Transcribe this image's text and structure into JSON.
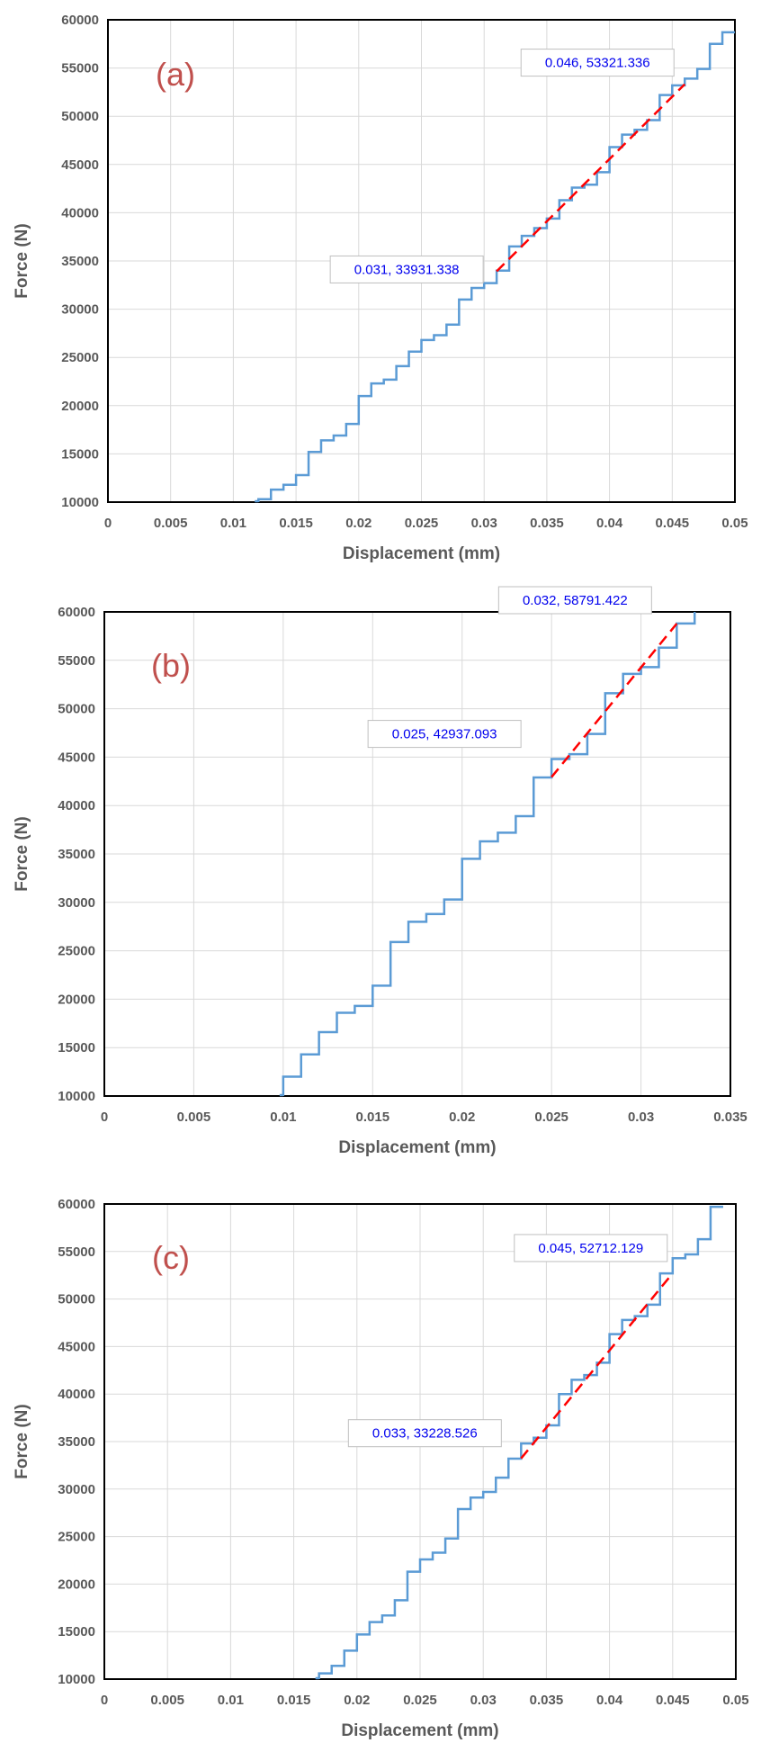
{
  "colors": {
    "curve": "#5b9bd5",
    "fit": "#ff0000",
    "annotation_text": "#0000ee",
    "panel_label": "#c0504d",
    "axis_text": "#595959",
    "grid": "#d9d9d9"
  },
  "chart_data": [
    {
      "type": "line",
      "panel_label": "(a)",
      "xlabel": "Displacement (mm)",
      "ylabel": "Force (N)",
      "xlim": [
        0,
        0.05
      ],
      "ylim": [
        10000,
        60000
      ],
      "xticks": [
        "0",
        "0.005",
        "0.01",
        "0.015",
        "0.02",
        "0.025",
        "0.03",
        "0.035",
        "0.04",
        "0.045",
        "0.05"
      ],
      "yticks": [
        "10000",
        "15000",
        "20000",
        "25000",
        "30000",
        "35000",
        "40000",
        "45000",
        "50000",
        "55000",
        "60000"
      ],
      "grid": true,
      "series": [
        {
          "style": "step",
          "x": [
            0.012,
            0.013,
            0.014,
            0.015,
            0.016,
            0.017,
            0.018,
            0.019,
            0.02,
            0.021,
            0.022,
            0.023,
            0.024,
            0.025,
            0.026,
            0.027,
            0.028,
            0.029,
            0.03,
            0.031,
            0.032,
            0.033,
            0.034,
            0.035,
            0.036,
            0.037,
            0.038,
            0.039,
            0.04,
            0.041,
            0.042,
            0.043,
            0.044,
            0.045,
            0.046,
            0.047,
            0.048,
            0.049,
            0.05
          ],
          "y": [
            10300,
            11300,
            11800,
            12800,
            15200,
            16400,
            16900,
            18100,
            21000,
            22300,
            22700,
            24100,
            25600,
            26800,
            27300,
            28400,
            31000,
            32200,
            32700,
            34000,
            36500,
            37600,
            38400,
            39400,
            41300,
            42600,
            42900,
            44200,
            46800,
            48100,
            48600,
            49600,
            52200,
            53200,
            53900,
            54900,
            57500,
            58700,
            58700
          ]
        },
        {
          "style": "dashed-fit",
          "x": [
            0.031,
            0.046
          ],
          "y": [
            33931.338,
            53321.336
          ]
        }
      ],
      "annotations": [
        {
          "text": "0.031, 33931.338",
          "x": 0.031,
          "y": 33931.338
        },
        {
          "text": "0.046, 53321.336",
          "x": 0.046,
          "y": 53321.336
        }
      ]
    },
    {
      "type": "line",
      "panel_label": "(b)",
      "xlabel": "Displacement (mm)",
      "ylabel": "Force (N)",
      "xlim": [
        0,
        0.035
      ],
      "ylim": [
        10000,
        60000
      ],
      "xticks": [
        "0",
        "0.005",
        "0.01",
        "0.015",
        "0.02",
        "0.025",
        "0.03",
        "0.035"
      ],
      "yticks": [
        "10000",
        "15000",
        "20000",
        "25000",
        "30000",
        "35000",
        "40000",
        "45000",
        "50000",
        "55000",
        "60000"
      ],
      "grid": true,
      "series": [
        {
          "style": "step",
          "x": [
            0.01,
            0.011,
            0.012,
            0.013,
            0.014,
            0.015,
            0.016,
            0.017,
            0.018,
            0.019,
            0.02,
            0.021,
            0.022,
            0.023,
            0.024,
            0.025,
            0.026,
            0.027,
            0.028,
            0.029,
            0.03,
            0.031,
            0.032,
            0.033
          ],
          "y": [
            12000,
            14300,
            16600,
            18600,
            19300,
            21400,
            25900,
            28000,
            28800,
            30300,
            34500,
            36300,
            37200,
            38900,
            42900,
            44800,
            45300,
            47400,
            51600,
            53600,
            54300,
            56300,
            58800,
            60000
          ]
        },
        {
          "style": "dashed-fit",
          "x": [
            0.025,
            0.032
          ],
          "y": [
            42937.093,
            58791.422
          ]
        }
      ],
      "annotations": [
        {
          "text": "0.025, 42937.093",
          "x": 0.025,
          "y": 42937.093
        },
        {
          "text": "0.032, 58791.422",
          "x": 0.032,
          "y": 58791.422
        }
      ]
    },
    {
      "type": "line",
      "panel_label": "(c)",
      "xlabel": "Displacement (mm)",
      "ylabel": "Force (N)",
      "xlim": [
        0,
        0.05
      ],
      "ylim": [
        10000,
        60000
      ],
      "xticks": [
        "0",
        "0.005",
        "0.01",
        "0.015",
        "0.02",
        "0.025",
        "0.03",
        "0.035",
        "0.04",
        "0.045",
        "0.05"
      ],
      "yticks": [
        "10000",
        "15000",
        "20000",
        "25000",
        "30000",
        "35000",
        "40000",
        "45000",
        "50000",
        "55000",
        "60000"
      ],
      "grid": true,
      "series": [
        {
          "style": "step",
          "x": [
            0.017,
            0.018,
            0.019,
            0.02,
            0.021,
            0.022,
            0.023,
            0.024,
            0.025,
            0.026,
            0.027,
            0.028,
            0.029,
            0.03,
            0.031,
            0.032,
            0.033,
            0.034,
            0.035,
            0.036,
            0.037,
            0.038,
            0.039,
            0.04,
            0.041,
            0.042,
            0.043,
            0.044,
            0.045,
            0.046,
            0.047,
            0.048,
            0.049
          ],
          "y": [
            10600,
            11400,
            13000,
            14700,
            16000,
            16700,
            18300,
            21300,
            22600,
            23300,
            24800,
            27900,
            29100,
            29700,
            31200,
            33200,
            34800,
            35400,
            36700,
            40000,
            41500,
            42000,
            43300,
            46300,
            47800,
            48200,
            49400,
            52700,
            54300,
            54700,
            56300,
            59700,
            59700
          ]
        },
        {
          "style": "dashed-fit",
          "x": [
            0.033,
            0.045
          ],
          "y": [
            33228.526,
            52712.129
          ]
        }
      ],
      "annotations": [
        {
          "text": "0.033, 33228.526",
          "x": 0.033,
          "y": 33228.526
        },
        {
          "text": "0.045, 52712.129",
          "x": 0.045,
          "y": 52712.129
        }
      ]
    }
  ]
}
